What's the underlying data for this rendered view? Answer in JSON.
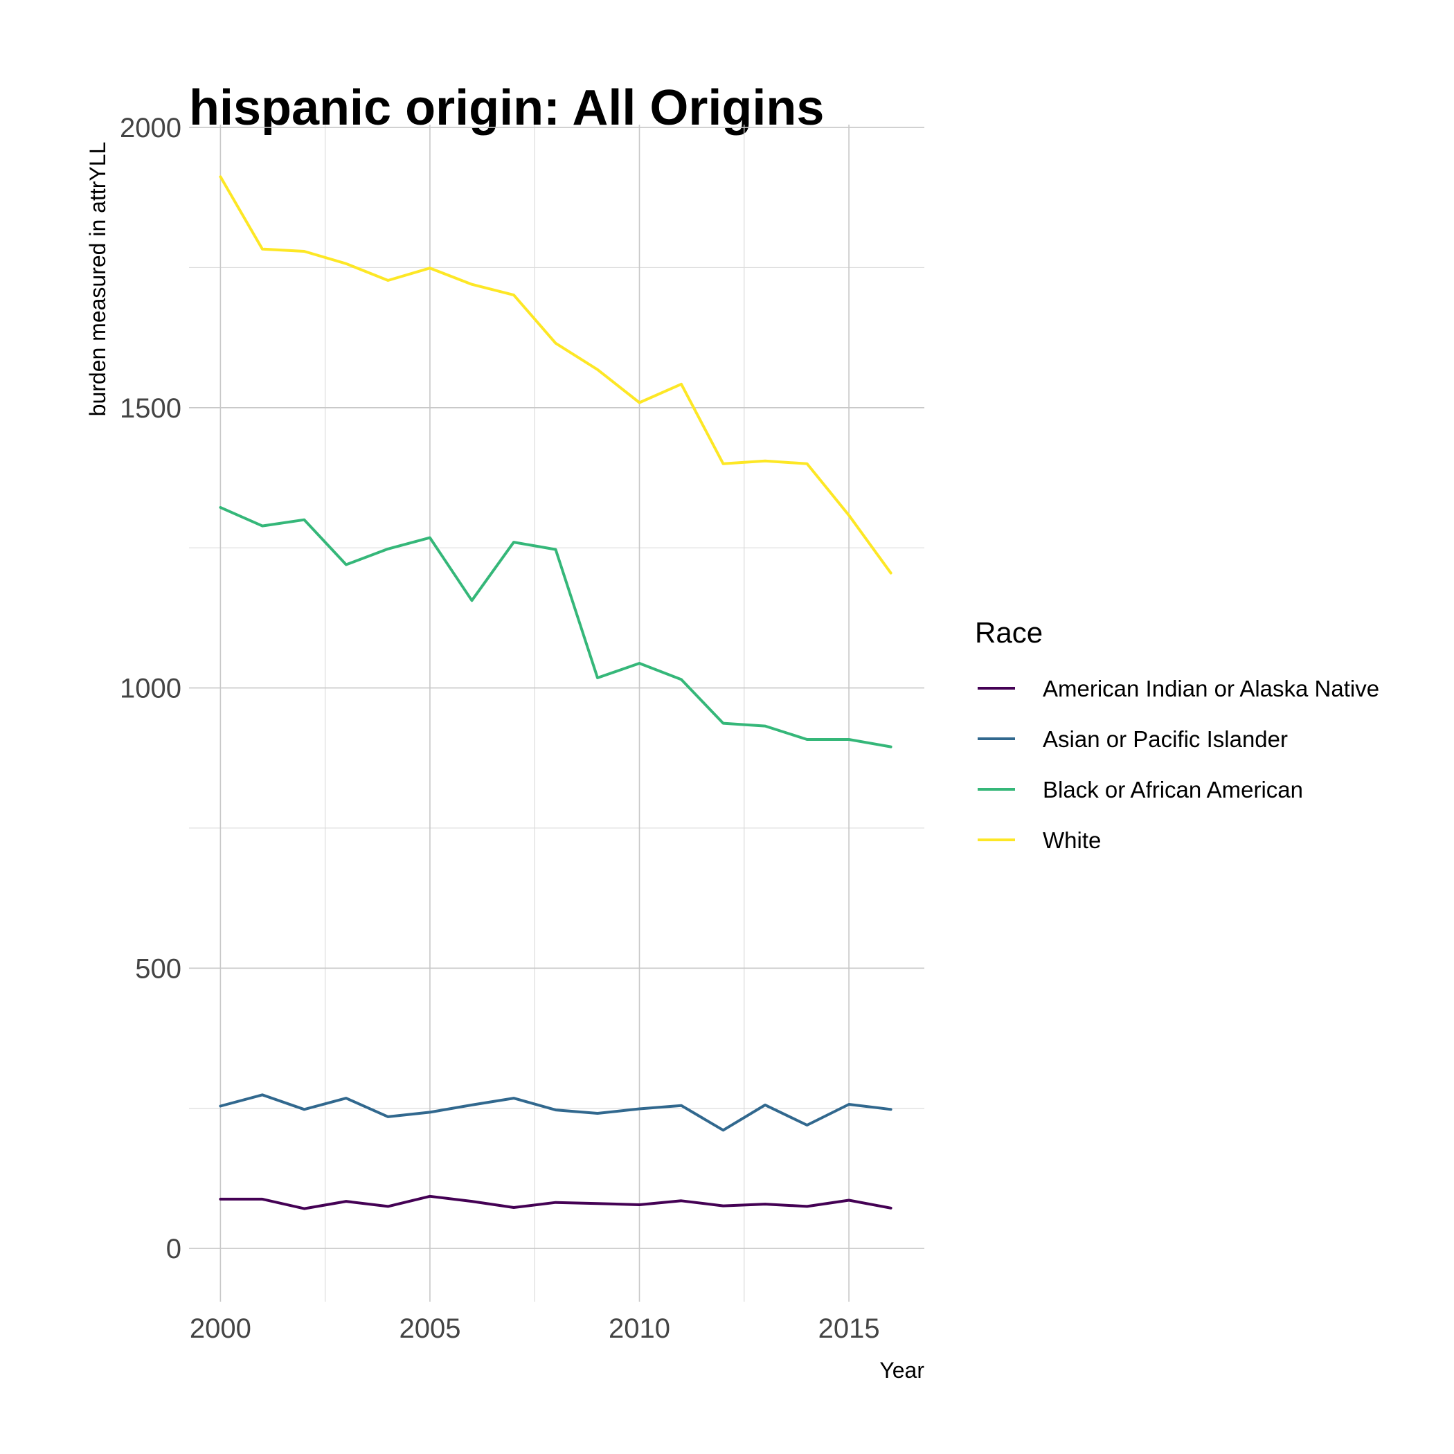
{
  "chart_data": {
    "type": "line",
    "title": "hispanic origin: All Origins",
    "xlabel": "Year",
    "ylabel": "burden measured in attrYLL",
    "x": [
      2000,
      2001,
      2002,
      2003,
      2004,
      2005,
      2006,
      2007,
      2008,
      2009,
      2010,
      2011,
      2012,
      2013,
      2014,
      2015,
      2016
    ],
    "xlim": [
      1999.25,
      2016.8
    ],
    "ylim": [
      -95,
      2005
    ],
    "x_ticks": [
      2000,
      2005,
      2010,
      2015
    ],
    "x_tick_labels": [
      "2000",
      "2005",
      "2010",
      "2015"
    ],
    "x_minor_ticks": [
      2002.5,
      2007.5,
      2012.5
    ],
    "y_ticks": [
      0,
      500,
      1000,
      1500,
      2000
    ],
    "y_tick_labels": [
      "0",
      "500",
      "1000",
      "1500",
      "2000"
    ],
    "y_minor_ticks": [
      250,
      750,
      1250,
      1750
    ],
    "grid": true,
    "legend": {
      "title": "Race",
      "position": "right"
    },
    "series": [
      {
        "name": "American Indian or Alaska Native",
        "color": "#440154",
        "values": [
          88,
          88,
          71,
          84,
          75,
          93,
          84,
          73,
          82,
          80,
          78,
          85,
          76,
          79,
          75,
          86,
          72
        ]
      },
      {
        "name": "Asian or Pacific Islander",
        "color": "#31688e",
        "values": [
          254,
          274,
          248,
          268,
          235,
          243,
          256,
          268,
          247,
          241,
          249,
          255,
          211,
          256,
          220,
          257,
          248
        ]
      },
      {
        "name": "Black or African American",
        "color": "#35b779",
        "values": [
          1322,
          1289,
          1300,
          1220,
          1248,
          1268,
          1156,
          1260,
          1247,
          1018,
          1044,
          1015,
          937,
          932,
          908,
          908,
          895
        ]
      },
      {
        "name": "White",
        "color": "#fde725",
        "values": [
          1912,
          1783,
          1779,
          1757,
          1727,
          1749,
          1720,
          1701,
          1615,
          1568,
          1509,
          1542,
          1400,
          1405,
          1400,
          1308,
          1205
        ]
      }
    ]
  }
}
